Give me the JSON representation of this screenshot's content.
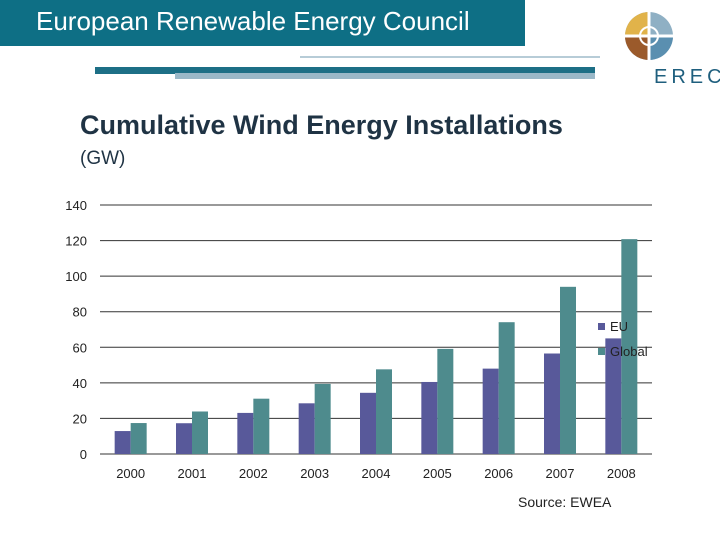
{
  "header": {
    "title": "European Renewable Energy Council"
  },
  "logo": {
    "text": "EREC"
  },
  "chart_data": {
    "type": "bar",
    "title": "Cumulative Wind Energy Installations",
    "subtitle": "(GW)",
    "categories": [
      "2000",
      "2001",
      "2002",
      "2003",
      "2004",
      "2005",
      "2006",
      "2007",
      "2008"
    ],
    "series": [
      {
        "name": "EU",
        "values": [
          12.9,
          17.3,
          23.1,
          28.5,
          34.4,
          40.5,
          48.0,
          56.5,
          65.0
        ],
        "color": "#58599a"
      },
      {
        "name": "Global",
        "values": [
          17.4,
          23.9,
          31.1,
          39.4,
          47.6,
          59.1,
          74.1,
          94.0,
          120.8
        ],
        "color": "#4e8b8d"
      }
    ],
    "ylim": [
      0,
      140
    ],
    "yticks": [
      0,
      20,
      40,
      60,
      80,
      100,
      120,
      140
    ],
    "grid": true,
    "legend_position": "right",
    "source": "Source: EWEA"
  }
}
